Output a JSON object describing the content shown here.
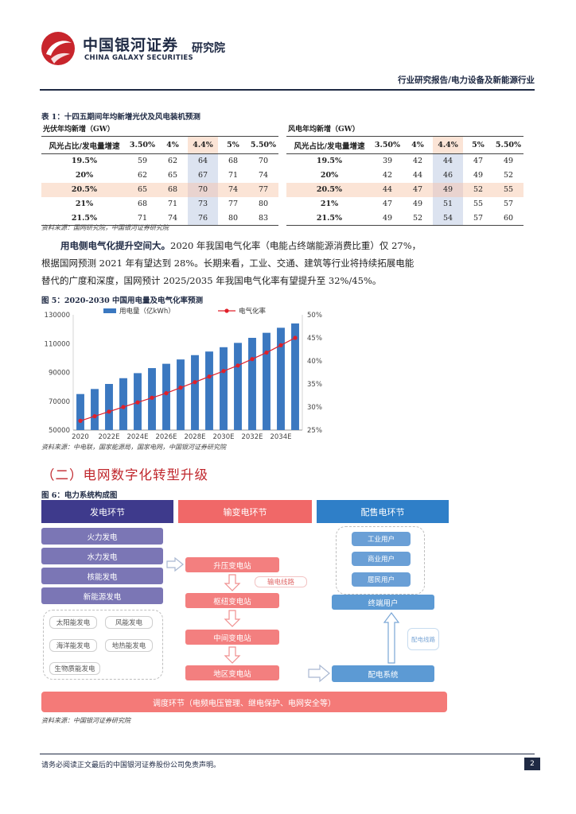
{
  "header": {
    "logo_cn": "中国银河证券",
    "logo_en": "CHINA GALAXY SECURITIES",
    "institute": "研究院",
    "report_category": "行业研究报告/电力设备及新能源行业"
  },
  "table1": {
    "caption": "表 1：十四五期间年均新增光伏及风电装机预测",
    "source": "资料来源：国网研究院，中国银河证券研究院",
    "pv": {
      "subtitle": "光伏年均新增（GW）",
      "corner": "风光占比/发电量增速",
      "columns": [
        "3.50%",
        "4%",
        "4.4%",
        "5%",
        "5.50%"
      ],
      "rows": [
        {
          "label": "19.5%",
          "values": [
            "59",
            "62",
            "64",
            "68",
            "70"
          ]
        },
        {
          "label": "20%",
          "values": [
            "62",
            "65",
            "67",
            "71",
            "74"
          ]
        },
        {
          "label": "20.5%",
          "values": [
            "65",
            "68",
            "70",
            "74",
            "77"
          ]
        },
        {
          "label": "21%",
          "values": [
            "68",
            "71",
            "73",
            "77",
            "80"
          ]
        },
        {
          "label": "21.5%",
          "values": [
            "71",
            "74",
            "76",
            "80",
            "83"
          ]
        }
      ]
    },
    "wind": {
      "subtitle": "风电年均新增（GW）",
      "corner": "风光占比/发电量增速",
      "columns": [
        "3.50%",
        "4%",
        "4.4%",
        "5%",
        "5.50%"
      ],
      "rows": [
        {
          "label": "19.5%",
          "values": [
            "39",
            "42",
            "44",
            "47",
            "49"
          ]
        },
        {
          "label": "20%",
          "values": [
            "42",
            "44",
            "46",
            "49",
            "52"
          ]
        },
        {
          "label": "20.5%",
          "values": [
            "44",
            "47",
            "49",
            "52",
            "55"
          ]
        },
        {
          "label": "21%",
          "values": [
            "47",
            "49",
            "51",
            "55",
            "57"
          ]
        },
        {
          "label": "21.5%",
          "values": [
            "49",
            "52",
            "54",
            "57",
            "60"
          ]
        }
      ]
    }
  },
  "paragraph": {
    "lead": "用电侧电气化提升空间大。",
    "line1": "2020 年我国电气化率（电能占终端能源消费比重）仅 27%，",
    "line2": "根据国网预测 2021 年有望达到 28%。长期来看，工业、交通、建筑等行业将持续拓展电能",
    "line3": "替代的广度和深度，国网预计 2025/2035 年我国电气化率有望提升至 32%/45%。"
  },
  "figure5": {
    "caption": "图 5：2020-2030 中国用电量及电气化率预测",
    "source": "资料来源：中电联，国家能源局，国家电网，中国银河证券研究院"
  },
  "chart_data": {
    "type": "bar",
    "title": "",
    "x": [
      "2020",
      "2021E",
      "2022E",
      "2023E",
      "2024E",
      "2025E",
      "2026E",
      "2027E",
      "2028E",
      "2029E",
      "2030E",
      "2031E",
      "2032E",
      "2033E",
      "2034E",
      "2035E"
    ],
    "x_tick_labels": [
      "2020",
      "2022E",
      "2024E",
      "2026E",
      "2028E",
      "2030E",
      "2032E",
      "2034E"
    ],
    "series": [
      {
        "name": "用电量（亿kWh）",
        "type": "bar",
        "axis": "left",
        "color": "#3b78c0",
        "values": [
          75000,
          78500,
          82000,
          86000,
          89500,
          93000,
          96000,
          99000,
          102000,
          104500,
          107500,
          110500,
          114000,
          117500,
          121000,
          124000
        ]
      },
      {
        "name": "电气化率",
        "type": "line",
        "axis": "right",
        "color": "#e0202a",
        "values": [
          27,
          28,
          29,
          30,
          31,
          32,
          33,
          34.2,
          35.4,
          36.6,
          37.8,
          39,
          40.4,
          41.8,
          43.4,
          45
        ]
      }
    ],
    "y_left": {
      "min": 50000,
      "max": 130000,
      "ticks": [
        "50000",
        "70000",
        "90000",
        "110000",
        "130000"
      ]
    },
    "y_right": {
      "min": 25,
      "max": 50,
      "ticks": [
        "25%",
        "30%",
        "35%",
        "40%",
        "45%",
        "50%"
      ]
    },
    "legend_position": "top",
    "grid": false
  },
  "section": {
    "title": "（二）电网数字化转型升级"
  },
  "figure6": {
    "caption": "图 6：电力系统构成图",
    "source": "资料来源：中国银河证券研究院",
    "headers": {
      "generation": "发电环节",
      "transmission": "输变电环节",
      "distribution": "配售电环节"
    },
    "generation_items": [
      "火力发电",
      "水力发电",
      "核能发电",
      "新能源发电"
    ],
    "new_energy_items": [
      "太阳能发电",
      "风能发电",
      "海洋能发电",
      "地热能发电",
      "生物质能发电"
    ],
    "transmission_items": [
      "升压变电站",
      "枢纽变电站",
      "中间变电站",
      "地区变电站"
    ],
    "transmission_line_label": "输电线路",
    "user_items": [
      "工业用户",
      "商业用户",
      "居民用户"
    ],
    "terminal_users": "终端用户",
    "distribution_line_label": "配电线路",
    "distribution_system": "配电系统",
    "dispatch": "调度环节（电频电压管理、继电保护、电网安全等）"
  },
  "footer": {
    "disclaimer": "请务必阅读正文最后的中国银河证券股份公司免责声明。",
    "page": "2"
  }
}
